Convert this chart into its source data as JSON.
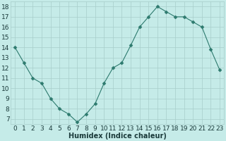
{
  "x": [
    0,
    1,
    2,
    3,
    4,
    5,
    6,
    7,
    8,
    9,
    10,
    11,
    12,
    13,
    14,
    15,
    16,
    17,
    18,
    19,
    20,
    21,
    22,
    23
  ],
  "y_values": [
    14.0,
    12.5,
    11.0,
    10.5,
    9.0,
    8.0,
    7.5,
    6.7,
    7.5,
    8.5,
    10.5,
    12.0,
    12.5,
    14.2,
    16.0,
    17.0,
    18.0,
    17.5,
    17.0,
    17.0,
    16.5,
    16.0,
    13.8,
    11.8
  ],
  "line_color": "#2d7a6e",
  "marker": "D",
  "marker_size": 2.5,
  "xlabel": "Humidex (Indice chaleur)",
  "xlim": [
    -0.5,
    23.5
  ],
  "ylim": [
    6.5,
    18.5
  ],
  "yticks": [
    7,
    8,
    9,
    10,
    11,
    12,
    13,
    14,
    15,
    16,
    17,
    18
  ],
  "xticks": [
    0,
    1,
    2,
    3,
    4,
    5,
    6,
    7,
    8,
    9,
    10,
    11,
    12,
    13,
    14,
    15,
    16,
    17,
    18,
    19,
    20,
    21,
    22,
    23
  ],
  "bg_color": "#c5ebe8",
  "grid_color": "#a8ceca",
  "font_color": "#1a3a3a",
  "font_size": 6.5,
  "xlabel_fontsize": 7.0
}
